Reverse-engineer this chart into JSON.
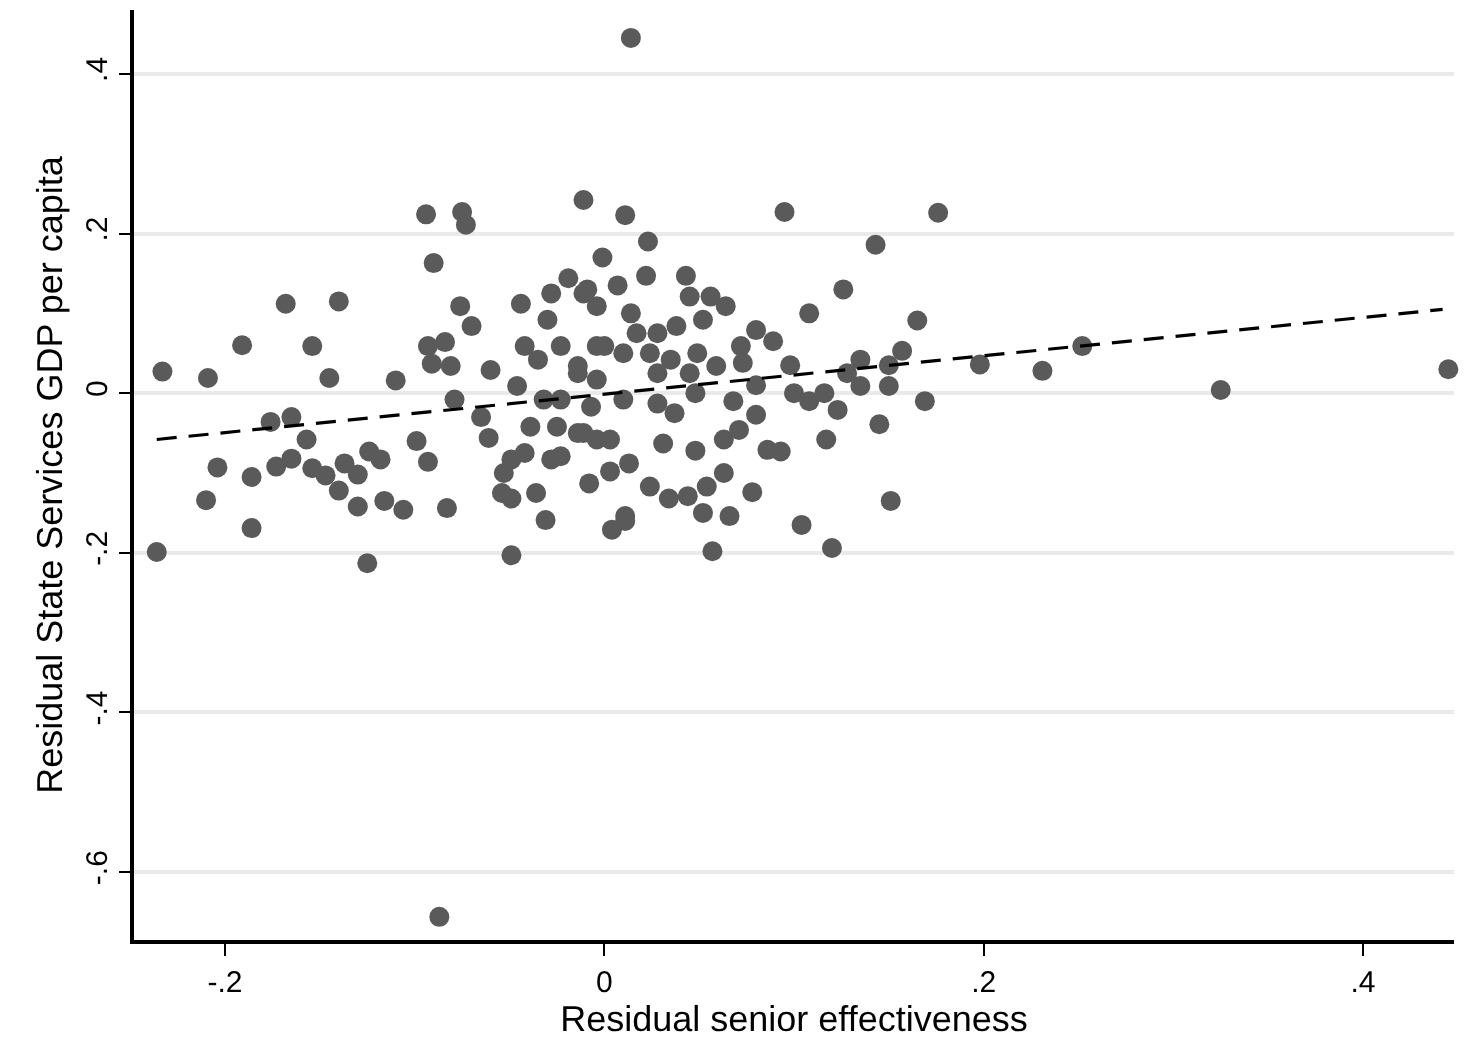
{
  "chart_data": {
    "type": "scatter",
    "xlabel": "Residual senior effectiveness",
    "ylabel": "Residual State Services GDP per capita",
    "xlim": [
      -0.248,
      0.448
    ],
    "ylim": [
      -0.685,
      0.48
    ],
    "xticks": [
      {
        "value": -0.2,
        "label": "-.2"
      },
      0,
      {
        "value": 0.2,
        "label": ".2"
      },
      {
        "value": 0.4,
        "label": ".4"
      }
    ],
    "yticks": [
      {
        "value": -0.6,
        "label": "-.6"
      },
      {
        "value": -0.4,
        "label": "-.4"
      },
      {
        "value": -0.2,
        "label": "-.2"
      },
      0,
      {
        "value": 0.2,
        "label": ".2"
      },
      {
        "value": 0.4,
        "label": ".4"
      }
    ],
    "grid": "y",
    "series": [
      {
        "marker": "circle",
        "color": "#5a5a5a",
        "x": [
          -0.233,
          -0.209,
          -0.191,
          -0.168,
          -0.14,
          -0.154,
          -0.145,
          -0.11,
          -0.094,
          -0.075,
          -0.073,
          -0.09,
          -0.011,
          -0.001,
          -0.076,
          -0.07,
          -0.044,
          -0.093,
          -0.084,
          -0.091,
          -0.081,
          -0.06,
          -0.079,
          -0.176,
          -0.165,
          -0.157,
          -0.204,
          -0.186,
          -0.173,
          -0.165,
          -0.154,
          -0.147,
          -0.137,
          -0.13,
          -0.124,
          -0.118,
          -0.14,
          -0.099,
          -0.093,
          -0.065,
          -0.061,
          -0.21,
          -0.116,
          -0.106,
          -0.083,
          -0.13,
          -0.036,
          -0.008,
          0.003,
          -0.053,
          -0.054,
          -0.028,
          -0.019,
          -0.011,
          -0.03,
          -0.023,
          -0.042,
          -0.035,
          -0.014,
          -0.004,
          -0.046,
          -0.032,
          -0.039,
          -0.025,
          -0.011,
          -0.042,
          -0.028,
          -0.004,
          -0.049,
          0.014,
          0.011,
          0.095,
          0.176,
          0.023,
          0.143,
          0.022,
          0.043,
          0.126,
          0.007,
          -0.009,
          0.045,
          0.056,
          0.064,
          0.108,
          0.165,
          0.08,
          0.089,
          0.157,
          0.135,
          0.098,
          0.128,
          0.198,
          0.231,
          0.15,
          -0.004,
          0.014,
          0.017,
          0.028,
          0.038,
          0.052,
          0.0,
          0.01,
          0.024,
          0.035,
          0.049,
          0.059,
          0.072,
          0.073,
          -0.014,
          -0.004,
          0.028,
          0.045,
          -0.023,
          -0.007,
          0.01,
          0.028,
          0.08,
          0.048,
          0.1,
          0.108,
          0.116,
          0.135,
          0.15,
          0.068,
          0.08,
          0.123,
          0.169,
          0.145,
          -0.014,
          0.003,
          0.037,
          0.031,
          0.063,
          0.071,
          0.048,
          0.086,
          0.093,
          0.117,
          -0.023,
          0.013,
          0.024,
          0.063,
          0.054,
          0.034,
          0.044,
          0.078,
          0.151,
          0.011,
          0.052,
          0.066,
          0.104,
          0.252,
          0.325,
          0.445,
          -0.236,
          -0.186,
          -0.125,
          -0.087,
          -0.049,
          -0.031,
          -0.049,
          0.004,
          0.011,
          0.057,
          0.12
        ],
        "values": [
          0.027,
          0.019,
          0.06,
          0.112,
          0.115,
          0.059,
          0.019,
          0.016,
          0.224,
          0.227,
          0.211,
          0.163,
          0.242,
          0.17,
          0.109,
          0.084,
          0.112,
          0.059,
          0.064,
          0.037,
          0.034,
          0.029,
          -0.008,
          -0.036,
          -0.03,
          -0.058,
          -0.093,
          -0.105,
          -0.092,
          -0.082,
          -0.094,
          -0.103,
          -0.088,
          -0.102,
          -0.073,
          -0.083,
          -0.122,
          -0.06,
          -0.086,
          -0.03,
          -0.056,
          -0.134,
          -0.135,
          -0.146,
          -0.144,
          -0.142,
          -0.125,
          -0.113,
          -0.098,
          -0.1,
          -0.125,
          0.125,
          0.144,
          0.125,
          0.092,
          0.059,
          0.059,
          0.042,
          0.034,
          0.059,
          0.009,
          -0.008,
          -0.042,
          -0.042,
          -0.05,
          -0.075,
          -0.083,
          -0.058,
          -0.083,
          0.445,
          0.223,
          0.227,
          0.226,
          0.19,
          0.186,
          0.147,
          0.147,
          0.13,
          0.135,
          0.13,
          0.121,
          0.121,
          0.109,
          0.1,
          0.091,
          0.079,
          0.065,
          0.053,
          0.042,
          0.035,
          0.025,
          0.036,
          0.028,
          0.035,
          0.109,
          0.1,
          0.075,
          0.075,
          0.084,
          0.092,
          0.059,
          0.05,
          0.05,
          0.042,
          0.05,
          0.034,
          0.059,
          0.038,
          0.025,
          0.017,
          0.025,
          0.025,
          -0.008,
          -0.017,
          -0.008,
          -0.013,
          0.01,
          0.0,
          0.0,
          -0.01,
          0.0,
          0.009,
          0.009,
          -0.01,
          -0.027,
          -0.021,
          -0.01,
          -0.039,
          -0.05,
          -0.058,
          -0.025,
          -0.063,
          -0.058,
          -0.046,
          -0.072,
          -0.071,
          -0.073,
          -0.058,
          -0.079,
          -0.088,
          -0.117,
          -0.1,
          -0.117,
          -0.132,
          -0.129,
          -0.124,
          -0.135,
          -0.154,
          -0.15,
          -0.154,
          -0.165,
          0.059,
          0.004,
          0.03,
          -0.199,
          -0.169,
          -0.213,
          -0.656,
          -0.132,
          -0.159,
          -0.203,
          -0.171,
          -0.16,
          -0.198,
          -0.194
        ]
      },
      {
        "type": "line",
        "color": "#000000",
        "line_style": "dashed",
        "marker": "none",
        "x": [
          -0.236,
          0.442
        ],
        "values": [
          -0.058,
          0.105
        ]
      }
    ]
  }
}
